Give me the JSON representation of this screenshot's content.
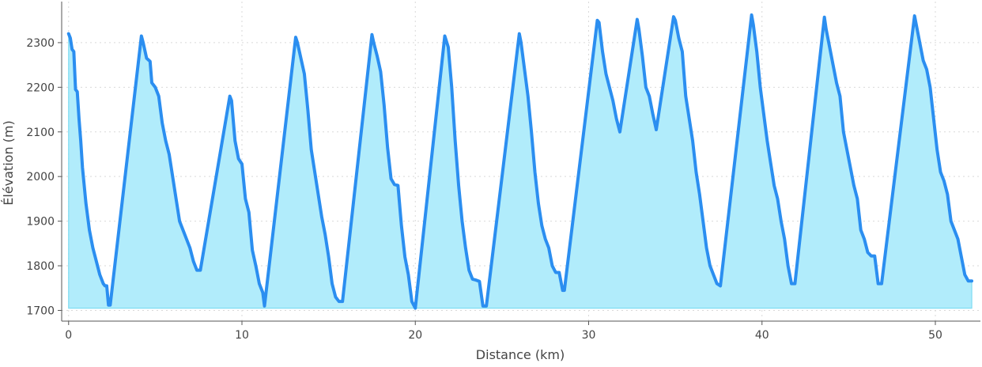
{
  "chart_data": {
    "type": "area",
    "title": "",
    "xlabel": "Distance (km)",
    "ylabel": "Élévation (m)",
    "xlim": [
      -0.4,
      52.6
    ],
    "ylim": [
      1676,
      2392
    ],
    "xticks": [
      0,
      10,
      20,
      30,
      40,
      50
    ],
    "yticks": [
      1700,
      1800,
      1900,
      2000,
      2100,
      2200,
      2300
    ],
    "grid": true,
    "baseline": 1705,
    "colors": {
      "line": "#2b8ef0",
      "fill": "#b1ecfb",
      "fill_edge": "#7ddcf2"
    },
    "series": [
      {
        "x": [
          0,
          0.1,
          0.2,
          0.3,
          0.4,
          0.5,
          0.6,
          0.7,
          0.8,
          1.0,
          1.2,
          1.4,
          1.6,
          1.8,
          2.0,
          2.1,
          2.2,
          2.3,
          2.4,
          4.2,
          4.3,
          4.5,
          4.7,
          4.8,
          5.0,
          5.2,
          5.4,
          5.6,
          5.8,
          6.0,
          6.2,
          6.4,
          6.6,
          6.8,
          7.0,
          7.2,
          7.4,
          7.6,
          9.3,
          9.4,
          9.6,
          9.8,
          10.0,
          10.2,
          10.4,
          10.6,
          10.8,
          11.0,
          11.2,
          11.3,
          13.1,
          13.2,
          13.4,
          13.6,
          13.8,
          14.0,
          14.2,
          14.4,
          14.6,
          14.8,
          15.0,
          15.2,
          15.4,
          15.6,
          15.8,
          17.5,
          17.6,
          17.8,
          18.0,
          18.2,
          18.4,
          18.6,
          18.8,
          19.0,
          19.2,
          19.4,
          19.6,
          19.8,
          20.0,
          21.7,
          21.9,
          22.1,
          22.3,
          22.5,
          22.7,
          22.9,
          23.1,
          23.3,
          23.5,
          23.7,
          23.9,
          24.1,
          26.0,
          26.1,
          26.3,
          26.5,
          26.7,
          26.9,
          27.1,
          27.3,
          27.5,
          27.7,
          27.9,
          28.1,
          28.3,
          28.5,
          28.6,
          30.5,
          30.6,
          30.8,
          31.0,
          31.2,
          31.4,
          31.6,
          31.8,
          32.8,
          32.9,
          33.1,
          33.3,
          33.5,
          33.7,
          33.9,
          34.9,
          35.0,
          35.2,
          35.4,
          35.6,
          35.8,
          36.0,
          36.2,
          36.4,
          36.6,
          36.8,
          37.0,
          37.2,
          37.4,
          37.6,
          39.4,
          39.5,
          39.7,
          39.9,
          40.1,
          40.3,
          40.5,
          40.7,
          40.9,
          41.1,
          41.3,
          41.5,
          41.7,
          41.9,
          43.6,
          43.7,
          43.9,
          44.1,
          44.3,
          44.5,
          44.7,
          44.9,
          45.1,
          45.3,
          45.5,
          45.7,
          45.9,
          46.1,
          46.3,
          46.5,
          46.7,
          46.9,
          48.8,
          48.9,
          49.1,
          49.3,
          49.5,
          49.7,
          49.9,
          50.1,
          50.3,
          50.5,
          50.7,
          50.9,
          51.1,
          51.3,
          51.5,
          51.7,
          51.9,
          52.1
        ],
        "y": [
          2320,
          2310,
          2285,
          2280,
          2195,
          2190,
          2130,
          2080,
          2020,
          1940,
          1880,
          1840,
          1810,
          1780,
          1760,
          1755,
          1755,
          1712,
          1712,
          2315,
          2300,
          2265,
          2258,
          2210,
          2200,
          2180,
          2120,
          2080,
          2050,
          2000,
          1950,
          1900,
          1880,
          1860,
          1840,
          1810,
          1790,
          1790,
          2180,
          2170,
          2080,
          2040,
          2028,
          1950,
          1920,
          1835,
          1800,
          1760,
          1740,
          1710,
          2312,
          2300,
          2265,
          2230,
          2150,
          2060,
          2010,
          1960,
          1910,
          1870,
          1820,
          1760,
          1730,
          1720,
          1720,
          2318,
          2300,
          2270,
          2235,
          2160,
          2065,
          1995,
          1982,
          1980,
          1890,
          1820,
          1780,
          1720,
          1705,
          2315,
          2290,
          2200,
          2080,
          1980,
          1900,
          1840,
          1790,
          1770,
          1768,
          1765,
          1710,
          1710,
          2320,
          2300,
          2240,
          2180,
          2100,
          2010,
          1940,
          1890,
          1860,
          1840,
          1800,
          1785,
          1785,
          1745,
          1745,
          2350,
          2345,
          2280,
          2230,
          2200,
          2170,
          2130,
          2100,
          2352,
          2330,
          2270,
          2200,
          2180,
          2140,
          2105,
          2358,
          2350,
          2310,
          2280,
          2180,
          2130,
          2080,
          2010,
          1960,
          1900,
          1840,
          1800,
          1780,
          1760,
          1755,
          2362,
          2340,
          2280,
          2200,
          2140,
          2080,
          2030,
          1980,
          1950,
          1900,
          1860,
          1800,
          1760,
          1760,
          2357,
          2330,
          2290,
          2250,
          2210,
          2180,
          2100,
          2060,
          2020,
          1980,
          1950,
          1880,
          1860,
          1830,
          1822,
          1822,
          1760,
          1760,
          2360,
          2340,
          2300,
          2260,
          2240,
          2200,
          2130,
          2060,
          2010,
          1990,
          1960,
          1900,
          1880,
          1860,
          1820,
          1780,
          1766,
          1766
        ]
      }
    ]
  }
}
